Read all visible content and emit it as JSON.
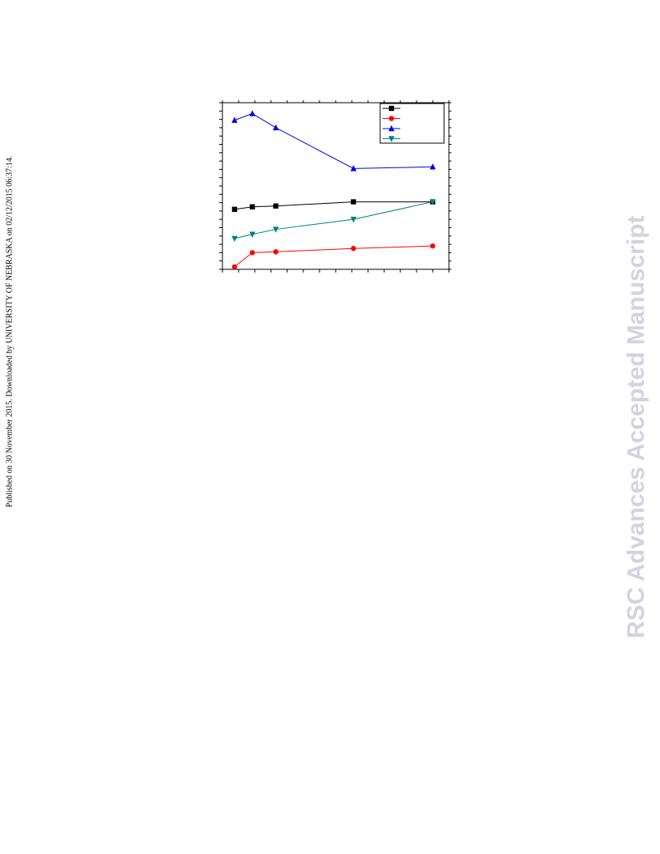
{
  "side_note": "Published on 30 November 2015. Downloaded by UNIVERSITY OF NEBRASKA on 02/12/2015 06:37:14.",
  "watermark": "RSC Advances Accepted Manuscript",
  "chart_data": {
    "type": "line",
    "xlim": [
      0,
      14
    ],
    "ylim": [
      0,
      20
    ],
    "xticks": [
      0,
      1,
      2,
      3,
      4,
      5,
      6,
      7,
      8,
      9,
      10,
      11,
      12,
      13,
      14
    ],
    "yticks": [
      0,
      1,
      2,
      3,
      4,
      5,
      6,
      7,
      8,
      9,
      10,
      11,
      12,
      13,
      14,
      15,
      16,
      17,
      18,
      19,
      20
    ],
    "legend": "top-right",
    "x": [
      0.75,
      1.85,
      3.3,
      8.1,
      13.0
    ],
    "series": [
      {
        "color": "#000000",
        "marker": "square",
        "values": [
          7.2,
          7.5,
          7.6,
          8.1,
          8.1
        ]
      },
      {
        "color": "#ff0000",
        "marker": "circle",
        "values": [
          0.3,
          2.0,
          2.1,
          2.5,
          2.8
        ]
      },
      {
        "color": "#0000ee",
        "marker": "triangle-up",
        "values": [
          17.9,
          18.7,
          17.0,
          12.1,
          12.3
        ]
      },
      {
        "color": "#008080",
        "marker": "triangle-down",
        "values": [
          3.7,
          4.2,
          4.8,
          6.0,
          8.1
        ]
      }
    ]
  }
}
